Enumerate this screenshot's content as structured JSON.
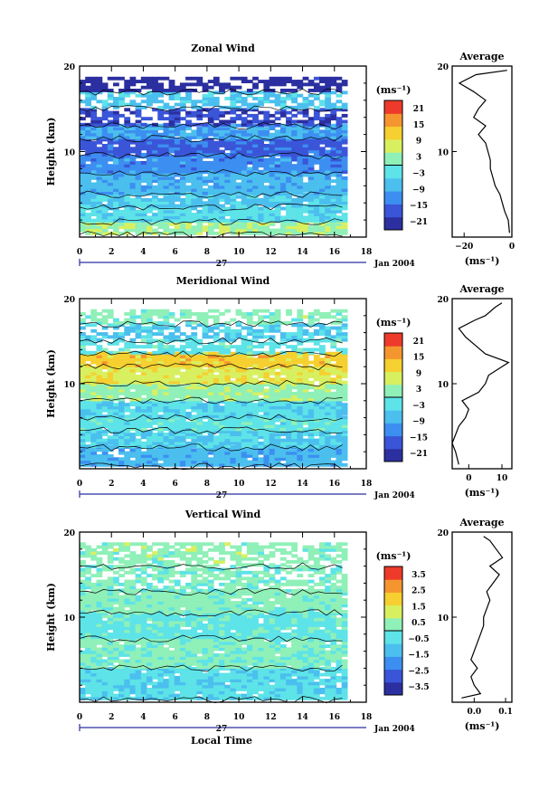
{
  "chart_data": [
    {
      "type": "heatmap",
      "title": "Zonal Wind",
      "ylabel": "Height (km)",
      "xlim": [
        0,
        18
      ],
      "ylim": [
        0,
        20
      ],
      "xticks": [
        "0",
        "2",
        "4",
        "6",
        "8",
        "10",
        "12",
        "14",
        "16",
        "18"
      ],
      "yticks": [
        "10",
        "20"
      ],
      "date_label": "27",
      "date_suffix": "Jan 2004",
      "colorbar": {
        "unit_label": "(ms⁻¹)",
        "ticks": [
          "21",
          "15",
          "9",
          "3",
          "−3",
          "−9",
          "−15",
          "−21"
        ],
        "range": [
          -24,
          24
        ]
      },
      "bands": [
        {
          "h0": 0.3,
          "h1": 1.8,
          "v": 4
        },
        {
          "h0": 1.8,
          "h1": 3.5,
          "v": -3
        },
        {
          "h0": 3.5,
          "h1": 5.0,
          "v": -6
        },
        {
          "h0": 5.0,
          "h1": 7.5,
          "v": -8
        },
        {
          "h0": 7.5,
          "h1": 9.5,
          "v": -12
        },
        {
          "h0": 9.5,
          "h1": 11.5,
          "v": -16
        },
        {
          "h0": 11.5,
          "h1": 13.0,
          "v": -10
        },
        {
          "h0": 13.0,
          "h1": 15.0,
          "v": -19
        },
        {
          "h0": 15.0,
          "h1": 17.0,
          "v": -6
        },
        {
          "h0": 17.0,
          "h1": 18.5,
          "v": -22
        }
      ],
      "average": {
        "title": "Average",
        "xticks": [
          "−20",
          "0"
        ],
        "xlim": [
          -25,
          0
        ],
        "ylim": [
          0,
          20
        ],
        "xlabel": "(ms⁻¹)",
        "profile": [
          [
            -1,
            0.5
          ],
          [
            -1.5,
            2
          ],
          [
            -3,
            3
          ],
          [
            -4,
            4
          ],
          [
            -5,
            5
          ],
          [
            -7,
            6
          ],
          [
            -8,
            7
          ],
          [
            -9,
            8
          ],
          [
            -9,
            9
          ],
          [
            -10,
            10
          ],
          [
            -11,
            11
          ],
          [
            -14,
            12
          ],
          [
            -11,
            13
          ],
          [
            -16,
            14
          ],
          [
            -14,
            15
          ],
          [
            -11,
            16
          ],
          [
            -16,
            17
          ],
          [
            -22,
            18
          ],
          [
            -15,
            19
          ],
          [
            -2,
            19.5
          ]
        ]
      }
    },
    {
      "type": "heatmap",
      "title": "Meridional Wind",
      "ylabel": "Height (km)",
      "xlim": [
        0,
        18
      ],
      "ylim": [
        0,
        20
      ],
      "xticks": [
        "0",
        "2",
        "4",
        "6",
        "8",
        "10",
        "12",
        "14",
        "16",
        "18"
      ],
      "yticks": [
        "10",
        "20"
      ],
      "date_label": "27",
      "date_suffix": "Jan 2004",
      "colorbar": {
        "unit_label": "(ms⁻¹)",
        "ticks": [
          "21",
          "15",
          "9",
          "3",
          "−3",
          "−9",
          "−15",
          "−21"
        ],
        "range": [
          -24,
          24
        ]
      },
      "bands": [
        {
          "h0": 0.3,
          "h1": 2.5,
          "v": -8
        },
        {
          "h0": 2.5,
          "h1": 4.5,
          "v": -5
        },
        {
          "h0": 4.5,
          "h1": 6.0,
          "v": -2
        },
        {
          "h0": 6.0,
          "h1": 8.0,
          "v": -4
        },
        {
          "h0": 8.0,
          "h1": 10.0,
          "v": 3
        },
        {
          "h0": 10.0,
          "h1": 12.0,
          "v": 8
        },
        {
          "h0": 12.0,
          "h1": 13.5,
          "v": 12
        },
        {
          "h0": 13.5,
          "h1": 15.0,
          "v": -2
        },
        {
          "h0": 15.0,
          "h1": 17.0,
          "v": -5
        },
        {
          "h0": 17.0,
          "h1": 18.5,
          "v": 2
        }
      ],
      "average": {
        "title": "Average",
        "xticks": [
          "0",
          "10"
        ],
        "xlim": [
          -5,
          13
        ],
        "ylim": [
          0,
          20
        ],
        "xlabel": "(ms⁻¹)",
        "profile": [
          [
            -3,
            0.5
          ],
          [
            -4,
            2
          ],
          [
            -5,
            3
          ],
          [
            -4,
            4
          ],
          [
            -3,
            5
          ],
          [
            -1,
            6
          ],
          [
            0,
            7
          ],
          [
            -2,
            8
          ],
          [
            3,
            9
          ],
          [
            5,
            10
          ],
          [
            6,
            11
          ],
          [
            10,
            12
          ],
          [
            12,
            12.5
          ],
          [
            5,
            13.5
          ],
          [
            2,
            14.5
          ],
          [
            -1,
            15.5
          ],
          [
            -3,
            16.5
          ],
          [
            2,
            17.5
          ],
          [
            5,
            18
          ],
          [
            8,
            19
          ],
          [
            10,
            19.5
          ]
        ]
      }
    },
    {
      "type": "heatmap",
      "title": "Vertical Wind",
      "ylabel": "Height (km)",
      "xlabel": "Local Time",
      "xlim": [
        0,
        18
      ],
      "ylim": [
        0,
        20
      ],
      "xticks": [
        "0",
        "2",
        "4",
        "6",
        "8",
        "10",
        "12",
        "14",
        "16",
        "18"
      ],
      "yticks": [
        "10",
        "20"
      ],
      "date_label": "27",
      "date_suffix": "Jan 2004",
      "colorbar": {
        "unit_label": "(ms⁻¹)",
        "ticks": [
          "3.5",
          "2.5",
          "1.5",
          "0.5",
          "−0.5",
          "−1.5",
          "−2.5",
          "−3.5"
        ],
        "range": [
          -4,
          4
        ]
      },
      "bands": [
        {
          "h0": 0.3,
          "h1": 4.0,
          "v": -0.6
        },
        {
          "h0": 4.0,
          "h1": 7.5,
          "v": 0.2
        },
        {
          "h0": 7.5,
          "h1": 10.5,
          "v": -0.3
        },
        {
          "h0": 10.5,
          "h1": 13.0,
          "v": 0.3
        },
        {
          "h0": 13.0,
          "h1": 16.0,
          "v": 0.1
        },
        {
          "h0": 16.0,
          "h1": 18.5,
          "v": 0.4
        }
      ],
      "average": {
        "title": "Average",
        "xticks": [
          "0.0",
          "0.1"
        ],
        "xlim": [
          -0.07,
          0.12
        ],
        "ylim": [
          0,
          20
        ],
        "xlabel": "(ms⁻¹)",
        "profile": [
          [
            -0.04,
            0.5
          ],
          [
            0.02,
            1
          ],
          [
            0.0,
            2
          ],
          [
            -0.01,
            3
          ],
          [
            0.01,
            4
          ],
          [
            -0.01,
            5
          ],
          [
            0.0,
            6
          ],
          [
            0.01,
            7
          ],
          [
            0.02,
            8
          ],
          [
            0.03,
            9
          ],
          [
            0.03,
            10
          ],
          [
            0.04,
            11
          ],
          [
            0.05,
            12
          ],
          [
            0.04,
            13
          ],
          [
            0.06,
            14
          ],
          [
            0.08,
            15
          ],
          [
            0.05,
            16
          ],
          [
            0.09,
            17
          ],
          [
            0.07,
            18
          ],
          [
            0.05,
            19
          ],
          [
            0.03,
            19.5
          ]
        ]
      }
    }
  ]
}
